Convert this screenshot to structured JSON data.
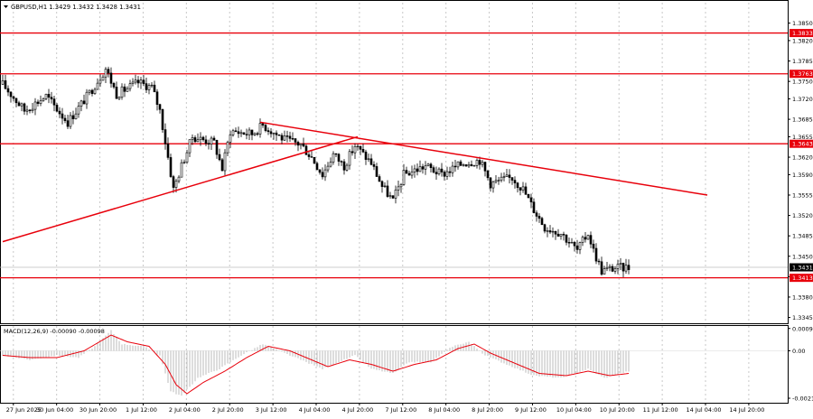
{
  "colors": {
    "background": "#ffffff",
    "text": "#000000",
    "grid": "#c8c8c8",
    "candle": "#000000",
    "level": "#e8000b",
    "price_tag_bg": "#e8000b",
    "price_tag_text": "#ffffff",
    "current_tag_bg": "#000000",
    "macd_hist": "#b4b4b4",
    "macd_signal": "#e8000b"
  },
  "chart_data": [
    {
      "type": "candlestick",
      "title": "GBPUSD,H1  1.3429 1.3432 1.3428 1.3431",
      "y_axis_side": "right",
      "ylim": [
        1.3335,
        1.3885
      ],
      "y_ticks": [
        "1.3850",
        "1.3820",
        "1.3785",
        "1.3750",
        "1.3720",
        "1.3685",
        "1.3655",
        "1.3620",
        "1.3590",
        "1.3555",
        "1.3520",
        "1.3485",
        "1.3450",
        "1.3415",
        "1.3380",
        "1.3345"
      ],
      "x_ticks": [
        "27 Jun 2025",
        "30 Jun 04:00",
        "30 Jun 20:00",
        "1 Jul 12:00",
        "2 Jul 04:00",
        "2 Jul 20:00",
        "3 Jul 12:00",
        "4 Jul 04:00",
        "4 Jul 20:00",
        "7 Jul 12:00",
        "8 Jul 04:00",
        "8 Jul 20:00",
        "9 Jul 12:00",
        "10 Jul 04:00",
        "10 Jul 20:00",
        "11 Jul 12:00",
        "14 Jul 04:00",
        "14 Jul 20:00"
      ],
      "bar_count": 232,
      "horizontal_levels": [
        {
          "price": 1.3833,
          "label": "1.3833"
        },
        {
          "price": 1.3763,
          "label": "1.3763"
        },
        {
          "price": 1.3643,
          "label": "1.3643"
        },
        {
          "price": 1.3413,
          "label": "1.3413"
        }
      ],
      "current_price": {
        "price": 1.3431,
        "label": "1.3431"
      },
      "trend_lines": [
        {
          "from": {
            "bar": 0,
            "price": 1.3475
          },
          "to": {
            "bar": 131,
            "price": 1.3655
          }
        },
        {
          "from": {
            "bar": 95,
            "price": 1.368
          },
          "to": {
            "bar": 260,
            "price": 1.3555
          }
        }
      ],
      "path_keypoints": [
        [
          0,
          1.3745
        ],
        [
          8,
          1.37
        ],
        [
          16,
          1.3725
        ],
        [
          24,
          1.368
        ],
        [
          32,
          1.373
        ],
        [
          38,
          1.3772
        ],
        [
          42,
          1.3728
        ],
        [
          50,
          1.3748
        ],
        [
          55,
          1.374
        ],
        [
          58,
          1.37
        ],
        [
          61,
          1.362
        ],
        [
          63,
          1.3565
        ],
        [
          66,
          1.3605
        ],
        [
          70,
          1.3655
        ],
        [
          78,
          1.3645
        ],
        [
          81,
          1.36
        ],
        [
          84,
          1.3665
        ],
        [
          92,
          1.366
        ],
        [
          96,
          1.3675
        ],
        [
          104,
          1.365
        ],
        [
          110,
          1.3642
        ],
        [
          114,
          1.362
        ],
        [
          118,
          1.359
        ],
        [
          122,
          1.3625
        ],
        [
          126,
          1.3605
        ],
        [
          130,
          1.364
        ],
        [
          136,
          1.361
        ],
        [
          140,
          1.357
        ],
        [
          144,
          1.3545
        ],
        [
          148,
          1.359
        ],
        [
          156,
          1.3605
        ],
        [
          162,
          1.359
        ],
        [
          170,
          1.361
        ],
        [
          176,
          1.3615
        ],
        [
          180,
          1.3575
        ],
        [
          184,
          1.358
        ],
        [
          188,
          1.3585
        ],
        [
          192,
          1.3565
        ],
        [
          196,
          1.353
        ],
        [
          200,
          1.35
        ],
        [
          206,
          1.349
        ],
        [
          212,
          1.346
        ],
        [
          216,
          1.349
        ],
        [
          218,
          1.346
        ],
        [
          221,
          1.3425
        ],
        [
          226,
          1.343
        ],
        [
          231,
          1.3431
        ]
      ]
    },
    {
      "type": "histogram",
      "title": "MACD(12,26,9) -0.00090 -0.00098",
      "ylim": [
        -0.0023,
        0.0011
      ],
      "y_ticks": [
        "0.00099",
        "0.00",
        "-0.0021"
      ],
      "hist_keypoints": [
        [
          0,
          -0.0002
        ],
        [
          10,
          -0.0004
        ],
        [
          20,
          -0.0002
        ],
        [
          28,
          -0.0003
        ],
        [
          34,
          0.0002
        ],
        [
          40,
          0.0009
        ],
        [
          44,
          0.0003
        ],
        [
          52,
          0.0002
        ],
        [
          58,
          -0.0002
        ],
        [
          62,
          -0.0018
        ],
        [
          66,
          -0.002
        ],
        [
          72,
          -0.0012
        ],
        [
          80,
          -0.0008
        ],
        [
          88,
          -0.0002
        ],
        [
          96,
          0.0003
        ],
        [
          104,
          -0.0001
        ],
        [
          112,
          -0.0005
        ],
        [
          118,
          -0.0008
        ],
        [
          124,
          -0.0005
        ],
        [
          130,
          -0.0002
        ],
        [
          136,
          -0.0008
        ],
        [
          144,
          -0.001
        ],
        [
          150,
          -0.0005
        ],
        [
          158,
          -0.0005
        ],
        [
          166,
          0.0002
        ],
        [
          172,
          0.0004
        ],
        [
          178,
          -0.0002
        ],
        [
          186,
          -0.0006
        ],
        [
          196,
          -0.0011
        ],
        [
          206,
          -0.0012
        ],
        [
          216,
          -0.0008
        ],
        [
          222,
          -0.0012
        ],
        [
          231,
          -0.0009
        ]
      ],
      "signal_keypoints": [
        [
          0,
          -0.0002
        ],
        [
          10,
          -0.0003
        ],
        [
          20,
          -0.0003
        ],
        [
          30,
          0.0
        ],
        [
          40,
          0.0007
        ],
        [
          46,
          0.0004
        ],
        [
          54,
          0.0002
        ],
        [
          60,
          -0.0006
        ],
        [
          64,
          -0.0015
        ],
        [
          68,
          -0.0019
        ],
        [
          74,
          -0.0014
        ],
        [
          82,
          -0.0009
        ],
        [
          90,
          -0.0003
        ],
        [
          98,
          0.0002
        ],
        [
          106,
          0.0
        ],
        [
          114,
          -0.0004
        ],
        [
          120,
          -0.0007
        ],
        [
          128,
          -0.0004
        ],
        [
          136,
          -0.0006
        ],
        [
          144,
          -0.0009
        ],
        [
          152,
          -0.0006
        ],
        [
          160,
          -0.0004
        ],
        [
          168,
          0.0001
        ],
        [
          174,
          0.0003
        ],
        [
          180,
          -0.0001
        ],
        [
          188,
          -0.0005
        ],
        [
          198,
          -0.001
        ],
        [
          208,
          -0.0011
        ],
        [
          216,
          -0.0009
        ],
        [
          224,
          -0.0011
        ],
        [
          231,
          -0.001
        ]
      ]
    }
  ]
}
